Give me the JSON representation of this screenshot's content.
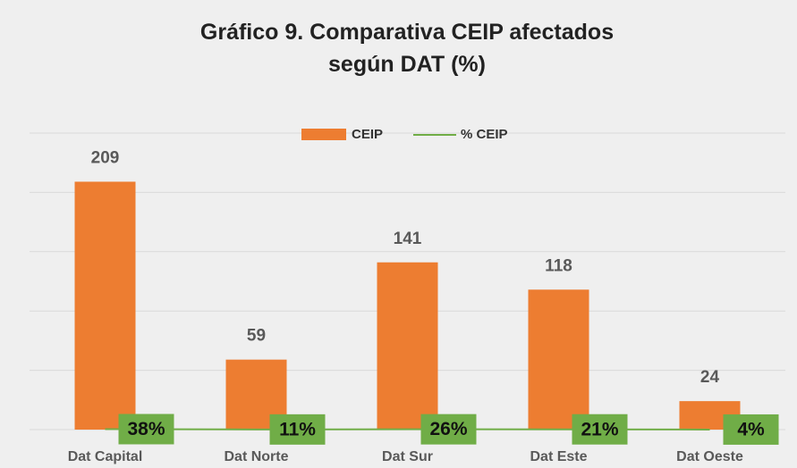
{
  "chart_data": {
    "type": "bar_line",
    "title": "Gráfico 9. Comparativa CEIP afectados según DAT (%)",
    "categories": [
      "Dat Capital",
      "Dat Norte",
      "Dat Sur",
      "Dat Este",
      "Dat Oeste"
    ],
    "series": [
      {
        "name": "CEIP",
        "type": "bar",
        "color": "#ed7d31",
        "values": [
          209,
          59,
          141,
          118,
          24
        ]
      },
      {
        "name": "% CEIP",
        "type": "line",
        "color": "#70ad47",
        "values": [
          0.38,
          0.11,
          0.26,
          0.21,
          0.04
        ],
        "value_labels": [
          "38%",
          "11%",
          "26%",
          "21%",
          "4%"
        ]
      }
    ],
    "ylim": [
      0,
      250
    ],
    "yticks": [
      0,
      50,
      100,
      150,
      200,
      250
    ],
    "grid": true,
    "legend": "top"
  }
}
